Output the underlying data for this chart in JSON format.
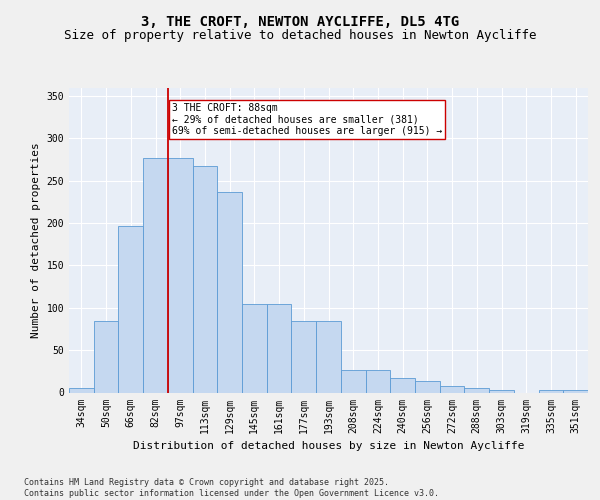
{
  "title1": "3, THE CROFT, NEWTON AYCLIFFE, DL5 4TG",
  "title2": "Size of property relative to detached houses in Newton Aycliffe",
  "xlabel": "Distribution of detached houses by size in Newton Aycliffe",
  "ylabel": "Number of detached properties",
  "categories": [
    "34sqm",
    "50sqm",
    "66sqm",
    "82sqm",
    "97sqm",
    "113sqm",
    "129sqm",
    "145sqm",
    "161sqm",
    "177sqm",
    "193sqm",
    "208sqm",
    "224sqm",
    "240sqm",
    "256sqm",
    "272sqm",
    "288sqm",
    "303sqm",
    "319sqm",
    "335sqm",
    "351sqm"
  ],
  "values": [
    5,
    84,
    196,
    277,
    277,
    267,
    237,
    104,
    104,
    84,
    84,
    27,
    27,
    17,
    14,
    8,
    5,
    3,
    0,
    3,
    3
  ],
  "bar_color": "#c5d8f0",
  "bar_edge_color": "#5b9bd5",
  "vline_color": "#cc0000",
  "vline_x": 3.5,
  "annotation_text": "3 THE CROFT: 88sqm\n← 29% of detached houses are smaller (381)\n69% of semi-detached houses are larger (915) →",
  "annotation_box_color": "#ffffff",
  "annotation_box_edge": "#cc0000",
  "ylim": [
    0,
    360
  ],
  "yticks": [
    0,
    50,
    100,
    150,
    200,
    250,
    300,
    350
  ],
  "background_color": "#e8eef7",
  "grid_color": "#ffffff",
  "footer_text": "Contains HM Land Registry data © Crown copyright and database right 2025.\nContains public sector information licensed under the Open Government Licence v3.0.",
  "title1_fontsize": 10,
  "title2_fontsize": 9,
  "axis_label_fontsize": 8,
  "tick_fontsize": 7,
  "annotation_fontsize": 7,
  "footer_fontsize": 6
}
